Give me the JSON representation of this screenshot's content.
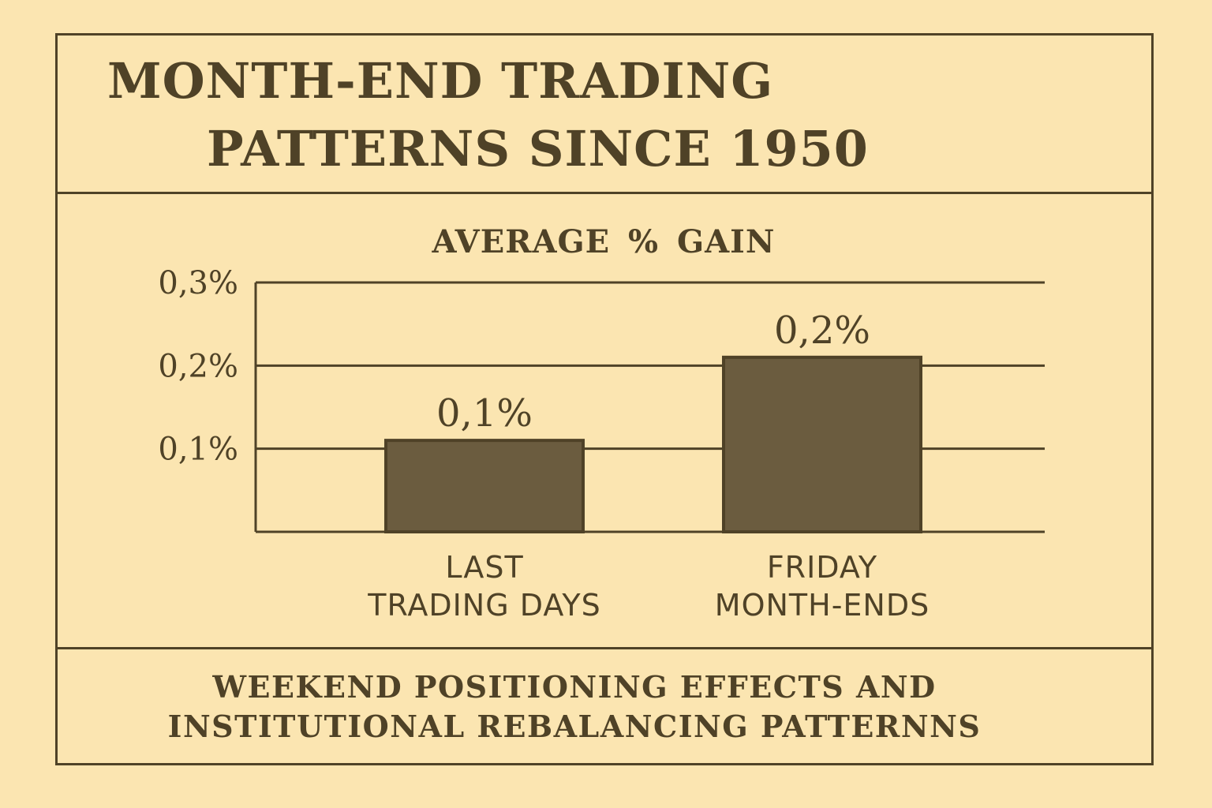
{
  "title_lines": [
    "MONTH-END TRADING",
    "PATTERNS SINCE 1950"
  ],
  "footer_lines": [
    "WEEKEND POSITIONING EFFECTS AND",
    "INSTITUTIONAL REBALANCING PATTERNNS"
  ],
  "colors": {
    "background": "#fbe5b1",
    "ink": "#4f4227",
    "bar_fill": "#6b5c3f"
  },
  "chart_data": {
    "type": "bar",
    "title": "AVERAGE % GAIN",
    "categories": [
      [
        "LAST",
        "TRADING DAYS"
      ],
      [
        "FRIDAY",
        "MONTH-ENDS"
      ]
    ],
    "values": [
      0.11,
      0.21
    ],
    "data_labels": [
      "0,1%",
      "0,2%"
    ],
    "yticks": [
      {
        "value": 0.1,
        "label": "0,1%"
      },
      {
        "value": 0.2,
        "label": "0,2%"
      },
      {
        "value": 0.3,
        "label": "0,3%"
      }
    ],
    "ylim": [
      0,
      0.3
    ],
    "grid": true
  }
}
